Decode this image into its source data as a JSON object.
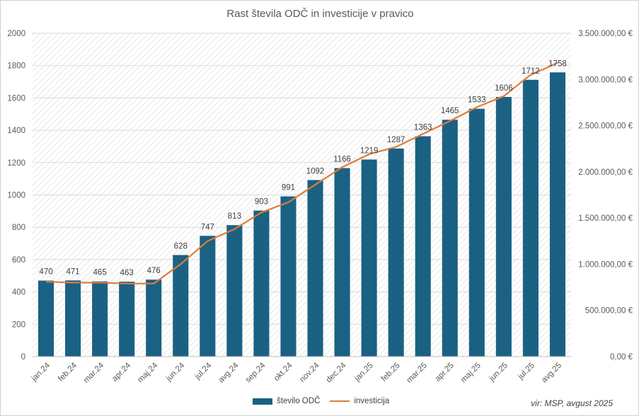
{
  "chart_data": {
    "type": "bar",
    "title": "Rast števila ODČ in investicije v pravico",
    "categories": [
      "jan.24",
      "feb.24",
      "mar.24",
      "apr.24",
      "maj.24",
      "jun.24",
      "jul.24",
      "avg.24",
      "sep.24",
      "okt.24",
      "nov.24",
      "dec.24",
      "jan.25",
      "feb.25",
      "mar.25",
      "apr.25",
      "maj.25",
      "jun.25",
      "jul.25",
      "avg.25"
    ],
    "series": [
      {
        "name": "število ODČ",
        "type": "bar",
        "axis": "left",
        "color": "#1b6183",
        "values": [
          470,
          471,
          465,
          463,
          476,
          628,
          747,
          813,
          903,
          991,
          1092,
          1166,
          1219,
          1287,
          1363,
          1465,
          1533,
          1606,
          1712,
          1758
        ]
      },
      {
        "name": "investicija",
        "type": "line",
        "axis": "right",
        "color": "#e07b39",
        "values": [
          810000,
          800000,
          800000,
          790000,
          790000,
          1000000,
          1250000,
          1380000,
          1560000,
          1670000,
          1860000,
          2050000,
          2190000,
          2270000,
          2410000,
          2550000,
          2700000,
          2820000,
          3050000,
          3180000
        ]
      }
    ],
    "yleft": {
      "min": 0,
      "max": 2000,
      "step": 200,
      "ticks": [
        "0",
        "200",
        "400",
        "600",
        "800",
        "1000",
        "1200",
        "1400",
        "1600",
        "1800",
        "2000"
      ]
    },
    "yright": {
      "min": 0,
      "max": 3500000,
      "step": 500000,
      "ticks": [
        "0,00 €",
        "500.000,00 €",
        "1.000.000,00 €",
        "1.500.000,00 €",
        "2.000.000,00 €",
        "2.500.000,00 €",
        "3.000.000,00 €",
        "3.500.000,00 €"
      ]
    },
    "grid": true,
    "legend_position": "bottom"
  },
  "source_note": "vir: MSP, avgust 2025"
}
